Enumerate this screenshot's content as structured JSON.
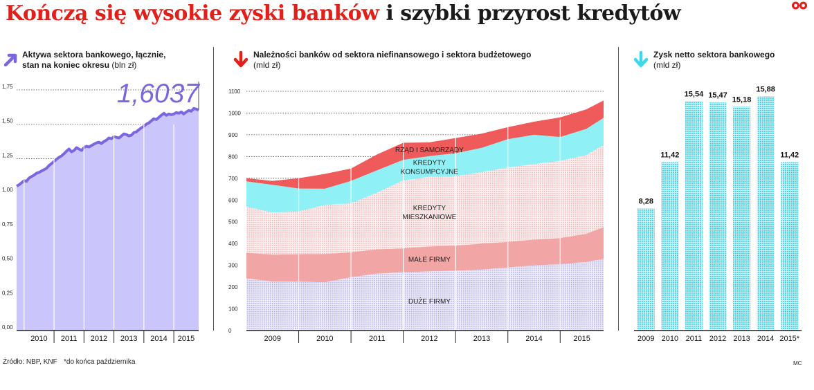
{
  "title": {
    "highlight": "Kończą się wysokie zyski banków",
    "rest": "i szybki przyrost kredytów"
  },
  "colors": {
    "title_red": "#e0201b",
    "assets_line": "#7b66e0",
    "assets_fill": "#cac6fb",
    "gov": "#ef5a5a",
    "consumer": "#8ff1f6",
    "mortgage": "#f6cfcf",
    "small_firms": "#f1a5a5",
    "large_firms": "#d6d6f4",
    "profit_bars": "#59d8ec"
  },
  "panels": {
    "assets": {
      "title_line1": "Aktywa sektora bankowego, łącznie,",
      "title_line2": "stan na koniec okresu",
      "unit": "(bln zł)",
      "arrow_icon": "arrow-up-icon",
      "arrow_color": "#7b66e0"
    },
    "loans": {
      "title_line1": "Należności banków od sektora niefinansowego i sektora budżetowego",
      "unit": "(mld zł)",
      "arrow_icon": "arrow-down-icon",
      "arrow_color": "#e0201b"
    },
    "profit": {
      "title_line1": "Zysk netto sektora bankowego",
      "unit": "(mld zł)",
      "arrow_icon": "arrow-down-icon",
      "arrow_color": "#3ed8ee"
    }
  },
  "footer": {
    "source": "Źródło: NBP, KNF",
    "note": "*do końca października",
    "credit": "MC"
  },
  "chart_data": [
    {
      "type": "area",
      "title": "Aktywa sektora bankowego, łącznie, stan na koniec okresu",
      "unit": "bln zł",
      "ylim": [
        0,
        1.75
      ],
      "yticks": [
        "0,00",
        "0,25",
        "0,50",
        "0,75",
        "1,00",
        "1,25",
        "1,50",
        "1,75"
      ],
      "xticks": [
        "2010",
        "2011",
        "2012",
        "2013",
        "2014",
        "2015"
      ],
      "x_range": [
        2009.75,
        2015.83
      ],
      "annotation": "1,6037",
      "points": [
        [
          2009.75,
          1.05
        ],
        [
          2009.83,
          1.06
        ],
        [
          2009.92,
          1.075
        ],
        [
          2010.0,
          1.09
        ],
        [
          2010.08,
          1.085
        ],
        [
          2010.17,
          1.11
        ],
        [
          2010.25,
          1.12
        ],
        [
          2010.33,
          1.13
        ],
        [
          2010.42,
          1.145
        ],
        [
          2010.5,
          1.15
        ],
        [
          2010.58,
          1.16
        ],
        [
          2010.67,
          1.17
        ],
        [
          2010.75,
          1.18
        ],
        [
          2010.83,
          1.2
        ],
        [
          2010.92,
          1.215
        ],
        [
          2011.0,
          1.23
        ],
        [
          2011.08,
          1.245
        ],
        [
          2011.17,
          1.26
        ],
        [
          2011.25,
          1.27
        ],
        [
          2011.33,
          1.285
        ],
        [
          2011.42,
          1.305
        ],
        [
          2011.5,
          1.32
        ],
        [
          2011.58,
          1.3
        ],
        [
          2011.67,
          1.31
        ],
        [
          2011.75,
          1.33
        ],
        [
          2011.83,
          1.32
        ],
        [
          2011.92,
          1.31
        ],
        [
          2012.0,
          1.33
        ],
        [
          2012.08,
          1.34
        ],
        [
          2012.17,
          1.335
        ],
        [
          2012.25,
          1.345
        ],
        [
          2012.33,
          1.355
        ],
        [
          2012.42,
          1.365
        ],
        [
          2012.5,
          1.37
        ],
        [
          2012.58,
          1.36
        ],
        [
          2012.67,
          1.375
        ],
        [
          2012.75,
          1.385
        ],
        [
          2012.83,
          1.4
        ],
        [
          2012.92,
          1.395
        ],
        [
          2013.0,
          1.41
        ],
        [
          2013.08,
          1.405
        ],
        [
          2013.17,
          1.4
        ],
        [
          2013.25,
          1.415
        ],
        [
          2013.33,
          1.43
        ],
        [
          2013.42,
          1.425
        ],
        [
          2013.5,
          1.415
        ],
        [
          2013.58,
          1.42
        ],
        [
          2013.67,
          1.44
        ],
        [
          2013.75,
          1.445
        ],
        [
          2013.83,
          1.46
        ],
        [
          2013.92,
          1.475
        ],
        [
          2014.0,
          1.485
        ],
        [
          2014.08,
          1.5
        ],
        [
          2014.17,
          1.51
        ],
        [
          2014.25,
          1.525
        ],
        [
          2014.33,
          1.54
        ],
        [
          2014.42,
          1.535
        ],
        [
          2014.5,
          1.55
        ],
        [
          2014.58,
          1.565
        ],
        [
          2014.67,
          1.58
        ],
        [
          2014.75,
          1.565
        ],
        [
          2014.83,
          1.575
        ],
        [
          2014.92,
          1.57
        ],
        [
          2015.0,
          1.575
        ],
        [
          2015.08,
          1.585
        ],
        [
          2015.17,
          1.58
        ],
        [
          2015.25,
          1.59
        ],
        [
          2015.33,
          1.575
        ],
        [
          2015.42,
          1.59
        ],
        [
          2015.5,
          1.6
        ],
        [
          2015.58,
          1.595
        ],
        [
          2015.67,
          1.615
        ],
        [
          2015.75,
          1.61
        ],
        [
          2015.83,
          1.6037
        ]
      ]
    },
    {
      "type": "area",
      "title": "Należności banków od sektora niefinansowego i sektora budżetowego",
      "unit": "mld zł",
      "stacked": true,
      "ylim": [
        0,
        1100
      ],
      "yticks": [
        "0",
        "100",
        "200",
        "300",
        "400",
        "500",
        "600",
        "700",
        "800",
        "900",
        "1000",
        "1100"
      ],
      "xticks": [
        "2009",
        "2010",
        "2011",
        "2012",
        "2013",
        "2014",
        "2015"
      ],
      "x_range": [
        2009.0,
        2015.83
      ],
      "x": [
        2009.0,
        2009.5,
        2010.0,
        2010.5,
        2011.0,
        2011.5,
        2012.0,
        2012.5,
        2013.0,
        2013.5,
        2014.0,
        2014.5,
        2015.0,
        2015.5,
        2015.83
      ],
      "series": [
        {
          "name": "DUŻE FIRMY",
          "values": [
            240,
            225,
            225,
            222,
            245,
            262,
            268,
            272,
            275,
            280,
            290,
            300,
            305,
            315,
            330
          ]
        },
        {
          "name": "MAŁE FIRMY",
          "values": [
            118,
            124,
            126,
            130,
            115,
            112,
            110,
            115,
            115,
            120,
            118,
            118,
            120,
            130,
            145
          ]
        },
        {
          "name": "KREDYTY MIESZKANIOWE",
          "values": [
            212,
            193,
            197,
            225,
            225,
            260,
            312,
            320,
            320,
            328,
            342,
            347,
            355,
            362,
            378
          ]
        },
        {
          "name": "KREDYTY KONSUMPCYJNE",
          "values": [
            116,
            128,
            105,
            75,
            103,
            103,
            95,
            95,
            105,
            112,
            130,
            135,
            110,
            120,
            125
          ]
        },
        {
          "name": "RZĄD I SAMORZĄDY",
          "values": [
            14,
            18,
            47,
            68,
            57,
            73,
            78,
            63,
            70,
            65,
            55,
            60,
            90,
            90,
            80
          ]
        }
      ]
    },
    {
      "type": "bar",
      "title": "Zysk netto sektora bankowego",
      "unit": "mld zł",
      "ylim": [
        0,
        16.6
      ],
      "categories": [
        "2009",
        "2010",
        "2011",
        "2012",
        "2013",
        "2014",
        "2015*"
      ],
      "values": [
        8.28,
        11.42,
        15.54,
        15.47,
        15.18,
        15.88,
        11.42
      ],
      "labels": [
        "8,28",
        "11,42",
        "15,54",
        "15,47",
        "15,18",
        "15,88",
        "11,42"
      ]
    }
  ]
}
